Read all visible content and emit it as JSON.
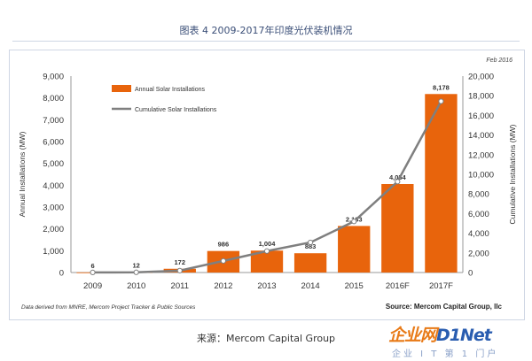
{
  "title": "图表 4 2009-2017年印度光伏装机情况",
  "date_note": "Feb 2016",
  "footnote": "Data derived from MNRE, Mercom Project Tracker & Public  Sources",
  "source": "Source: Mercom Capital Group, llc",
  "caption": "来源：Mercom Capital Group",
  "watermark": {
    "main": "企业网D1Net",
    "sub": "企业 I T 第 1 门户"
  },
  "colors": {
    "bar": "#e8640c",
    "line": "#7f7f7f",
    "title": "#3b4f78"
  },
  "chart_data": {
    "type": "bar",
    "categories": [
      "2009",
      "2010",
      "2011",
      "2012",
      "2013",
      "2014",
      "2015",
      "2016F",
      "2017F"
    ],
    "series": [
      {
        "name": "Annual Solar Installations",
        "type": "bar",
        "axis": "left",
        "values": [
          6,
          12,
          172,
          986,
          1004,
          883,
          2133,
          4054,
          8178
        ]
      },
      {
        "name": "Cumulative Solar Installations",
        "type": "line",
        "axis": "right",
        "values": [
          10,
          22,
          194,
          1180,
          2184,
          3067,
          5200,
          9254,
          17432
        ]
      }
    ],
    "data_labels": [
      "6",
      "12",
      "172",
      "986",
      "1,004",
      "883",
      "2,133",
      "4,054",
      "8,178"
    ],
    "ylabel": "Annual Installations (MW)",
    "y2label": "Cumulative Installations (MW)",
    "ylim": [
      0,
      9000
    ],
    "y2lim": [
      0,
      20000
    ],
    "yticks": [
      "0",
      "1,000",
      "2,000",
      "3,000",
      "4,000",
      "5,000",
      "6,000",
      "7,000",
      "8,000",
      "9,000"
    ],
    "y2ticks": [
      "0",
      "2,000",
      "4,000",
      "6,000",
      "8,000",
      "10,000",
      "12,000",
      "14,000",
      "16,000",
      "18,000",
      "20,000"
    ],
    "grid": false,
    "legend": "top-left"
  }
}
